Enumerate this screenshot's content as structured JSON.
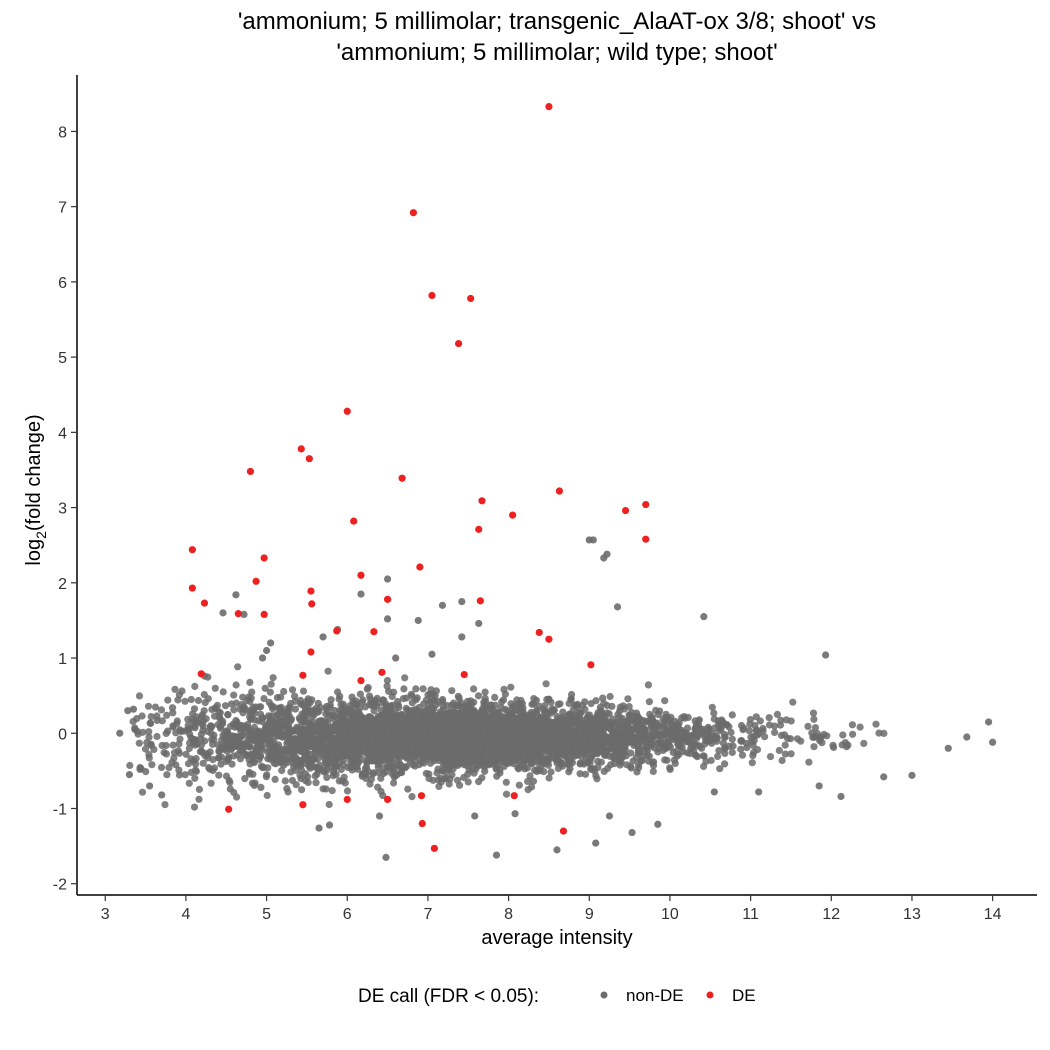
{
  "chart_data": {
    "type": "scatter",
    "title": [
      "'ammonium; 5 millimolar; transgenic_AlaAT-ox 3/8; shoot' vs",
      "'ammonium; 5 millimolar; wild type; shoot'"
    ],
    "xlabel": "average intensity",
    "ylabel_main": "log",
    "ylabel_sub": "2",
    "ylabel_rest": "(fold change)",
    "xlim": [
      2.65,
      14.55
    ],
    "ylim": [
      -2.15,
      8.75
    ],
    "xticks": [
      3,
      4,
      5,
      6,
      7,
      8,
      9,
      10,
      11,
      12,
      13,
      14
    ],
    "yticks": [
      -2,
      -1,
      0,
      1,
      2,
      3,
      4,
      5,
      6,
      7,
      8
    ],
    "grid": false,
    "legend": {
      "title": "DE call (FDR < 0.05):",
      "position": "bottom",
      "entries": [
        {
          "label": "non-DE",
          "color": "#6b6b6b"
        },
        {
          "label": "DE",
          "color": "#ee2020"
        }
      ]
    },
    "series": [
      {
        "name": "DE",
        "color": "#ee2020",
        "points": [
          [
            8.5,
            8.33
          ],
          [
            6.82,
            6.92
          ],
          [
            7.05,
            5.82
          ],
          [
            7.53,
            5.78
          ],
          [
            7.38,
            5.18
          ],
          [
            6.0,
            4.28
          ],
          [
            5.43,
            3.78
          ],
          [
            5.53,
            3.65
          ],
          [
            4.8,
            3.48
          ],
          [
            6.68,
            3.39
          ],
          [
            8.63,
            3.22
          ],
          [
            7.67,
            3.09
          ],
          [
            9.7,
            3.04
          ],
          [
            9.45,
            2.96
          ],
          [
            8.05,
            2.9
          ],
          [
            6.08,
            2.82
          ],
          [
            7.63,
            2.71
          ],
          [
            9.7,
            2.58
          ],
          [
            4.08,
            2.44
          ],
          [
            4.97,
            2.33
          ],
          [
            6.9,
            2.21
          ],
          [
            6.17,
            2.1
          ],
          [
            4.87,
            2.02
          ],
          [
            4.08,
            1.93
          ],
          [
            5.55,
            1.89
          ],
          [
            6.5,
            1.78
          ],
          [
            7.65,
            1.76
          ],
          [
            4.23,
            1.73
          ],
          [
            5.56,
            1.72
          ],
          [
            4.65,
            1.59
          ],
          [
            4.97,
            1.58
          ],
          [
            5.87,
            1.36
          ],
          [
            6.33,
            1.35
          ],
          [
            8.38,
            1.34
          ],
          [
            8.5,
            1.25
          ],
          [
            5.55,
            1.08
          ],
          [
            9.02,
            0.91
          ],
          [
            4.19,
            0.79
          ],
          [
            5.45,
            0.77
          ],
          [
            6.17,
            0.7
          ],
          [
            6.43,
            0.81
          ],
          [
            7.45,
            0.78
          ],
          [
            6.0,
            -0.88
          ],
          [
            6.5,
            -0.88
          ],
          [
            6.92,
            -0.83
          ],
          [
            8.07,
            -0.83
          ],
          [
            4.53,
            -1.01
          ],
          [
            5.45,
            -0.95
          ],
          [
            6.93,
            -1.2
          ],
          [
            8.68,
            -1.3
          ],
          [
            7.08,
            -1.53
          ]
        ]
      }
    ],
    "nonde_outliers": [
      [
        9.05,
        2.57
      ],
      [
        9.22,
        2.38
      ],
      [
        9.18,
        2.33
      ],
      [
        6.5,
        2.05
      ],
      [
        6.17,
        1.85
      ],
      [
        4.62,
        1.84
      ],
      [
        7.18,
        1.7
      ],
      [
        7.42,
        1.75
      ],
      [
        9.35,
        1.68
      ],
      [
        10.42,
        1.55
      ],
      [
        6.5,
        1.52
      ],
      [
        6.88,
        1.5
      ],
      [
        4.72,
        1.58
      ],
      [
        7.63,
        1.46
      ],
      [
        4.46,
        1.6
      ],
      [
        5.88,
        1.38
      ],
      [
        11.93,
        1.04
      ],
      [
        7.42,
        1.28
      ],
      [
        5.7,
        1.28
      ],
      [
        5.05,
        1.2
      ],
      [
        5.0,
        1.1
      ],
      [
        6.6,
        1.0
      ],
      [
        7.05,
        1.05
      ],
      [
        9.0,
        2.57
      ],
      [
        4.95,
        1.0
      ],
      [
        6.48,
        -1.65
      ],
      [
        7.85,
        -1.62
      ],
      [
        8.6,
        -1.55
      ],
      [
        9.08,
        -1.46
      ],
      [
        9.53,
        -1.32
      ],
      [
        9.85,
        -1.21
      ],
      [
        5.65,
        -1.26
      ],
      [
        5.78,
        -1.22
      ],
      [
        6.4,
        -1.1
      ],
      [
        7.58,
        -1.1
      ],
      [
        8.08,
        -1.07
      ],
      [
        9.25,
        -1.1
      ],
      [
        12.12,
        -0.84
      ],
      [
        13.0,
        -0.56
      ],
      [
        12.65,
        -0.58
      ],
      [
        10.55,
        -0.78
      ],
      [
        11.1,
        -0.78
      ],
      [
        11.85,
        -0.7
      ],
      [
        3.3,
        -0.55
      ],
      [
        3.55,
        -0.7
      ],
      [
        3.7,
        -0.82
      ],
      [
        13.45,
        -0.2
      ],
      [
        14.0,
        -0.12
      ],
      [
        13.68,
        -0.05
      ],
      [
        13.95,
        0.15
      ],
      [
        3.18,
        0.0
      ],
      [
        3.28,
        0.3
      ],
      [
        3.35,
        0.32
      ]
    ]
  }
}
